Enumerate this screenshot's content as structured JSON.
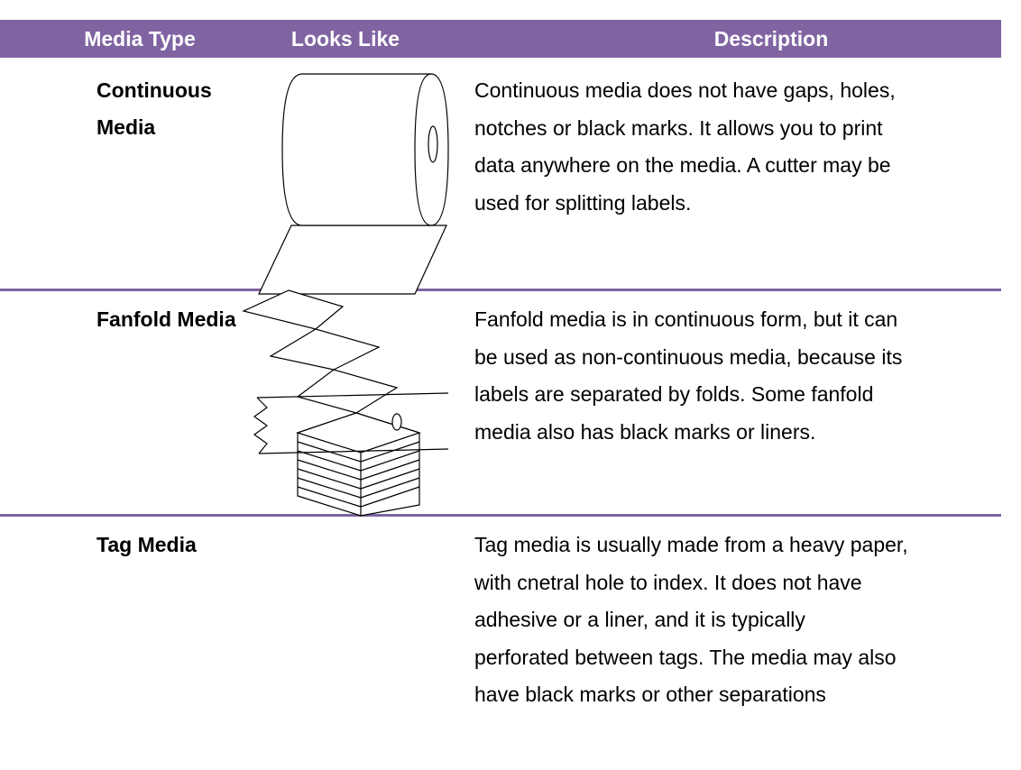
{
  "table": {
    "header": [
      "Media Type",
      "Looks Like",
      "Description"
    ],
    "rows": [
      {
        "media_type": "Continuous Media",
        "description": [
          "Continuous media does not have gaps, holes,",
          "notches or black marks. It allows you to print",
          "data anywhere on the media. A cutter may be",
          "used for splitting labels."
        ]
      },
      {
        "media_type": "Fanfold Media",
        "description": [
          "Fanfold media is in continuous form, but it can",
          "be used as non-continuous media, because its",
          "labels are separated by folds. Some fanfold",
          "media also has black marks or liners."
        ]
      },
      {
        "media_type": "Tag Media",
        "description": [
          "Tag media is usually made from a heavy paper,",
          "with cnetral hole to index. It does not have",
          "adhesive or a liner, and it is typically",
          "perforated between tags. The media may also",
          "have black marks or other separations"
        ]
      }
    ]
  }
}
